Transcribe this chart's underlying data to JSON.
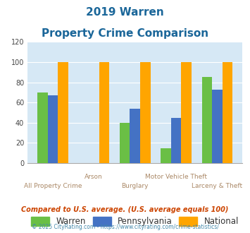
{
  "title_line1": "2019 Warren",
  "title_line2": "Property Crime Comparison",
  "categories": [
    "All Property Crime",
    "Arson",
    "Burglary",
    "Motor Vehicle Theft",
    "Larceny & Theft"
  ],
  "warren": [
    70,
    0,
    40,
    15,
    85
  ],
  "pennsylvania": [
    67,
    0,
    54,
    45,
    73
  ],
  "national": [
    100,
    100,
    100,
    100,
    100
  ],
  "warren_color": "#6abf45",
  "pennsylvania_color": "#4472c4",
  "national_color": "#ffa500",
  "ylim": [
    0,
    120
  ],
  "yticks": [
    0,
    20,
    40,
    60,
    80,
    100,
    120
  ],
  "bg_color": "#d6e8f5",
  "title_color": "#1a6699",
  "xlabel_color": "#aa8866",
  "footnote1": "Compared to U.S. average. (U.S. average equals 100)",
  "footnote2": "© 2025 CityRating.com - https://www.cityrating.com/crime-statistics/",
  "footnote1_color": "#cc4400",
  "footnote2_color": "#4488aa"
}
